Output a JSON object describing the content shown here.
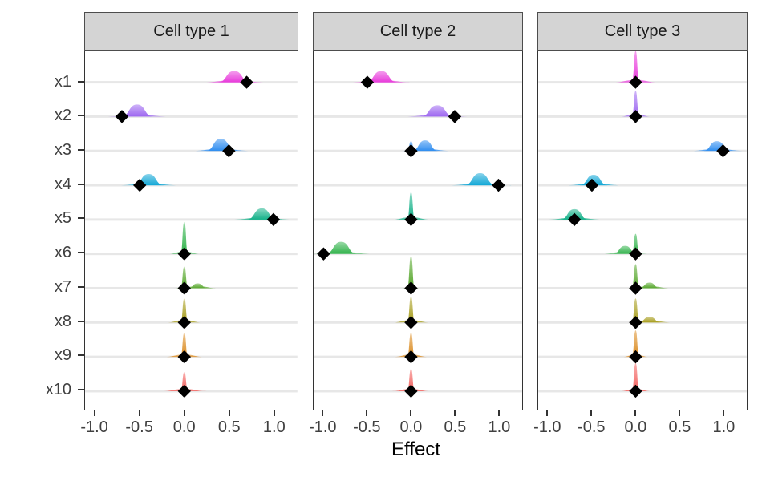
{
  "chart_data": {
    "type": "ridgeline",
    "xlabel": "Effect",
    "x_tick_labels": [
      "-1.0",
      "-0.5",
      "0.0",
      "0.5",
      "1.0"
    ],
    "x_tick_values": [
      -1.0,
      -0.5,
      0.0,
      0.5,
      1.0
    ],
    "xlim": [
      -1.1,
      1.25
    ],
    "variables": [
      "x1",
      "x2",
      "x3",
      "x4",
      "x5",
      "x6",
      "x7",
      "x8",
      "x9",
      "x10"
    ],
    "palette": [
      "#E83ADB",
      "#9D67F0",
      "#2E8DF0",
      "#12A7D6",
      "#14B189",
      "#30B24A",
      "#55A62A",
      "#A79D1C",
      "#DB8B20",
      "#F2615E"
    ],
    "point_marker": "diamond",
    "point_color": "#000000",
    "grid_color": "#e7e7e7",
    "strip_bg": "#d4d4d4",
    "facets": [
      {
        "label": "Cell type 1",
        "rows": [
          {
            "var": "x1",
            "point": 0.7,
            "densities": [
              {
                "kind": "bump",
                "center": 0.56,
                "halfwidth": 0.18,
                "height": 14
              }
            ]
          },
          {
            "var": "x2",
            "point": -0.7,
            "densities": [
              {
                "kind": "bump",
                "center": -0.53,
                "halfwidth": 0.18,
                "height": 15
              }
            ]
          },
          {
            "var": "x3",
            "point": 0.5,
            "densities": [
              {
                "kind": "bump",
                "center": 0.41,
                "halfwidth": 0.17,
                "height": 15
              }
            ]
          },
          {
            "var": "x4",
            "point": -0.5,
            "densities": [
              {
                "kind": "bump",
                "center": -0.4,
                "halfwidth": 0.17,
                "height": 14
              }
            ]
          },
          {
            "var": "x5",
            "point": 1.0,
            "densities": [
              {
                "kind": "bump",
                "center": 0.87,
                "halfwidth": 0.17,
                "height": 14
              }
            ]
          },
          {
            "var": "x6",
            "point": 0.0,
            "densities": [
              {
                "kind": "spike",
                "center": 0,
                "height": 40,
                "flare": 0.18
              }
            ]
          },
          {
            "var": "x7",
            "point": 0.0,
            "densities": [
              {
                "kind": "spike",
                "center": 0,
                "height": 27,
                "flare": 0.1
              },
              {
                "kind": "bump",
                "center": 0.15,
                "halfwidth": 0.11,
                "height": 6
              }
            ]
          },
          {
            "var": "x8",
            "point": 0.0,
            "densities": [
              {
                "kind": "spike",
                "center": 0,
                "height": 30,
                "flare": 0.2
              }
            ]
          },
          {
            "var": "x9",
            "point": 0.0,
            "densities": [
              {
                "kind": "spike",
                "center": 0,
                "height": 30,
                "flare": 0.22
              }
            ]
          },
          {
            "var": "x10",
            "point": 0.0,
            "densities": [
              {
                "kind": "spike",
                "center": 0,
                "height": 24,
                "flare": 0.25
              }
            ]
          }
        ]
      },
      {
        "label": "Cell type 2",
        "rows": [
          {
            "var": "x1",
            "point": -0.5,
            "densities": [
              {
                "kind": "bump",
                "center": -0.34,
                "halfwidth": 0.18,
                "height": 14
              }
            ]
          },
          {
            "var": "x2",
            "point": 0.5,
            "densities": [
              {
                "kind": "bump",
                "center": 0.3,
                "halfwidth": 0.19,
                "height": 14
              }
            ]
          },
          {
            "var": "x3",
            "point": 0.0,
            "densities": [
              {
                "kind": "bump",
                "center": 0.16,
                "halfwidth": 0.15,
                "height": 13
              },
              {
                "kind": "spike",
                "center": 0,
                "height": 12,
                "flare": 0.03
              }
            ]
          },
          {
            "var": "x4",
            "point": 1.0,
            "densities": [
              {
                "kind": "bump",
                "center": 0.79,
                "halfwidth": 0.18,
                "height": 15
              }
            ]
          },
          {
            "var": "x5",
            "point": 0.0,
            "densities": [
              {
                "kind": "spike",
                "center": 0,
                "height": 34,
                "flare": 0.22
              }
            ]
          },
          {
            "var": "x6",
            "point": -1.0,
            "densities": [
              {
                "kind": "bump",
                "center": -0.8,
                "halfwidth": 0.18,
                "height": 15
              }
            ]
          },
          {
            "var": "x7",
            "point": 0.0,
            "densities": [
              {
                "kind": "spike",
                "center": 0,
                "height": 40,
                "flare": 0.1
              }
            ]
          },
          {
            "var": "x8",
            "point": 0.0,
            "densities": [
              {
                "kind": "spike",
                "center": 0,
                "height": 32,
                "flare": 0.22
              }
            ]
          },
          {
            "var": "x9",
            "point": 0.0,
            "densities": [
              {
                "kind": "spike",
                "center": 0,
                "height": 30,
                "flare": 0.2
              }
            ]
          },
          {
            "var": "x10",
            "point": 0.0,
            "densities": [
              {
                "kind": "spike",
                "center": 0,
                "height": 28,
                "flare": 0.22
              }
            ]
          }
        ]
      },
      {
        "label": "Cell type 3",
        "rows": [
          {
            "var": "x1",
            "point": 0.0,
            "densities": [
              {
                "kind": "spike",
                "center": 0,
                "height": 39,
                "flare": 0.25
              }
            ]
          },
          {
            "var": "x2",
            "point": 0.0,
            "densities": [
              {
                "kind": "spike",
                "center": 0,
                "height": 32,
                "flare": 0.18
              }
            ]
          },
          {
            "var": "x3",
            "point": 1.0,
            "densities": [
              {
                "kind": "bump",
                "center": 0.93,
                "halfwidth": 0.16,
                "height": 12
              }
            ]
          },
          {
            "var": "x4",
            "point": -0.5,
            "densities": [
              {
                "kind": "bump",
                "center": -0.48,
                "halfwidth": 0.16,
                "height": 13
              }
            ]
          },
          {
            "var": "x5",
            "point": -0.7,
            "densities": [
              {
                "kind": "bump",
                "center": -0.7,
                "halfwidth": 0.16,
                "height": 13
              }
            ]
          },
          {
            "var": "x6",
            "point": 0.0,
            "densities": [
              {
                "kind": "bump",
                "center": -0.12,
                "halfwidth": 0.14,
                "height": 10
              },
              {
                "kind": "spike",
                "center": 0,
                "height": 25,
                "flare": 0.05
              }
            ]
          },
          {
            "var": "x7",
            "point": 0.0,
            "densities": [
              {
                "kind": "spike",
                "center": 0,
                "height": 30,
                "flare": 0.08
              },
              {
                "kind": "bump",
                "center": 0.16,
                "halfwidth": 0.12,
                "height": 7
              }
            ]
          },
          {
            "var": "x8",
            "point": 0.0,
            "densities": [
              {
                "kind": "spike",
                "center": 0,
                "height": 30,
                "flare": 0.06
              },
              {
                "kind": "bump",
                "center": 0.16,
                "halfwidth": 0.13,
                "height": 7
              }
            ]
          },
          {
            "var": "x9",
            "point": 0.0,
            "densities": [
              {
                "kind": "spike",
                "center": 0,
                "height": 33,
                "flare": 0.15
              }
            ]
          },
          {
            "var": "x10",
            "point": 0.0,
            "densities": [
              {
                "kind": "spike",
                "center": 0,
                "height": 35,
                "flare": 0.18
              }
            ]
          }
        ]
      }
    ]
  }
}
